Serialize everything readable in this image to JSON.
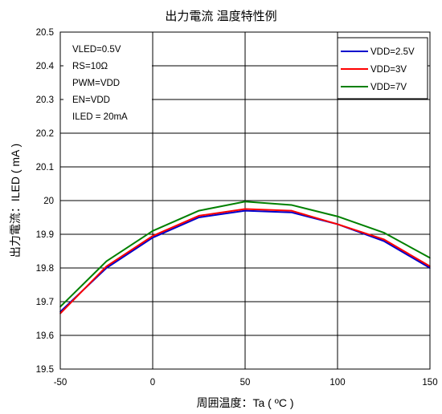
{
  "chart_data": {
    "type": "line",
    "title": "出力電流 温度特性例",
    "xlabel": "周囲温度：Ta ( ºC )",
    "ylabel": "出力電流：ILED ( mA )",
    "xlim": [
      -50,
      150
    ],
    "ylim": [
      19.5,
      20.5
    ],
    "x_ticks": [
      "-50",
      "0",
      "50",
      "100",
      "150"
    ],
    "y_ticks": [
      "19.5",
      "19.6",
      "19.7",
      "19.8",
      "19.9",
      "20",
      "20.1",
      "20.2",
      "20.3",
      "20.4",
      "20.5"
    ],
    "grid": true,
    "legend_position": "top-right",
    "annotations": [
      "VLED=0.5V",
      "RS=10Ω",
      "PWM=VDD",
      "EN=VDD",
      "ILED = 20mA"
    ],
    "x": [
      -50,
      -25,
      0,
      25,
      50,
      75,
      100,
      125,
      150
    ],
    "series": [
      {
        "name": "VDD=2.5V",
        "color": "#0000cc",
        "values": [
          19.67,
          19.8,
          19.89,
          19.95,
          19.97,
          19.965,
          19.93,
          19.88,
          19.8
        ]
      },
      {
        "name": "VDD=3V",
        "color": "#ff0000",
        "values": [
          19.665,
          19.805,
          19.895,
          19.955,
          19.975,
          19.97,
          19.93,
          19.885,
          19.805
        ]
      },
      {
        "name": "VDD=7V",
        "color": "#008000",
        "values": [
          19.685,
          19.82,
          19.91,
          19.97,
          19.997,
          19.987,
          19.953,
          19.905,
          19.83
        ]
      }
    ]
  }
}
